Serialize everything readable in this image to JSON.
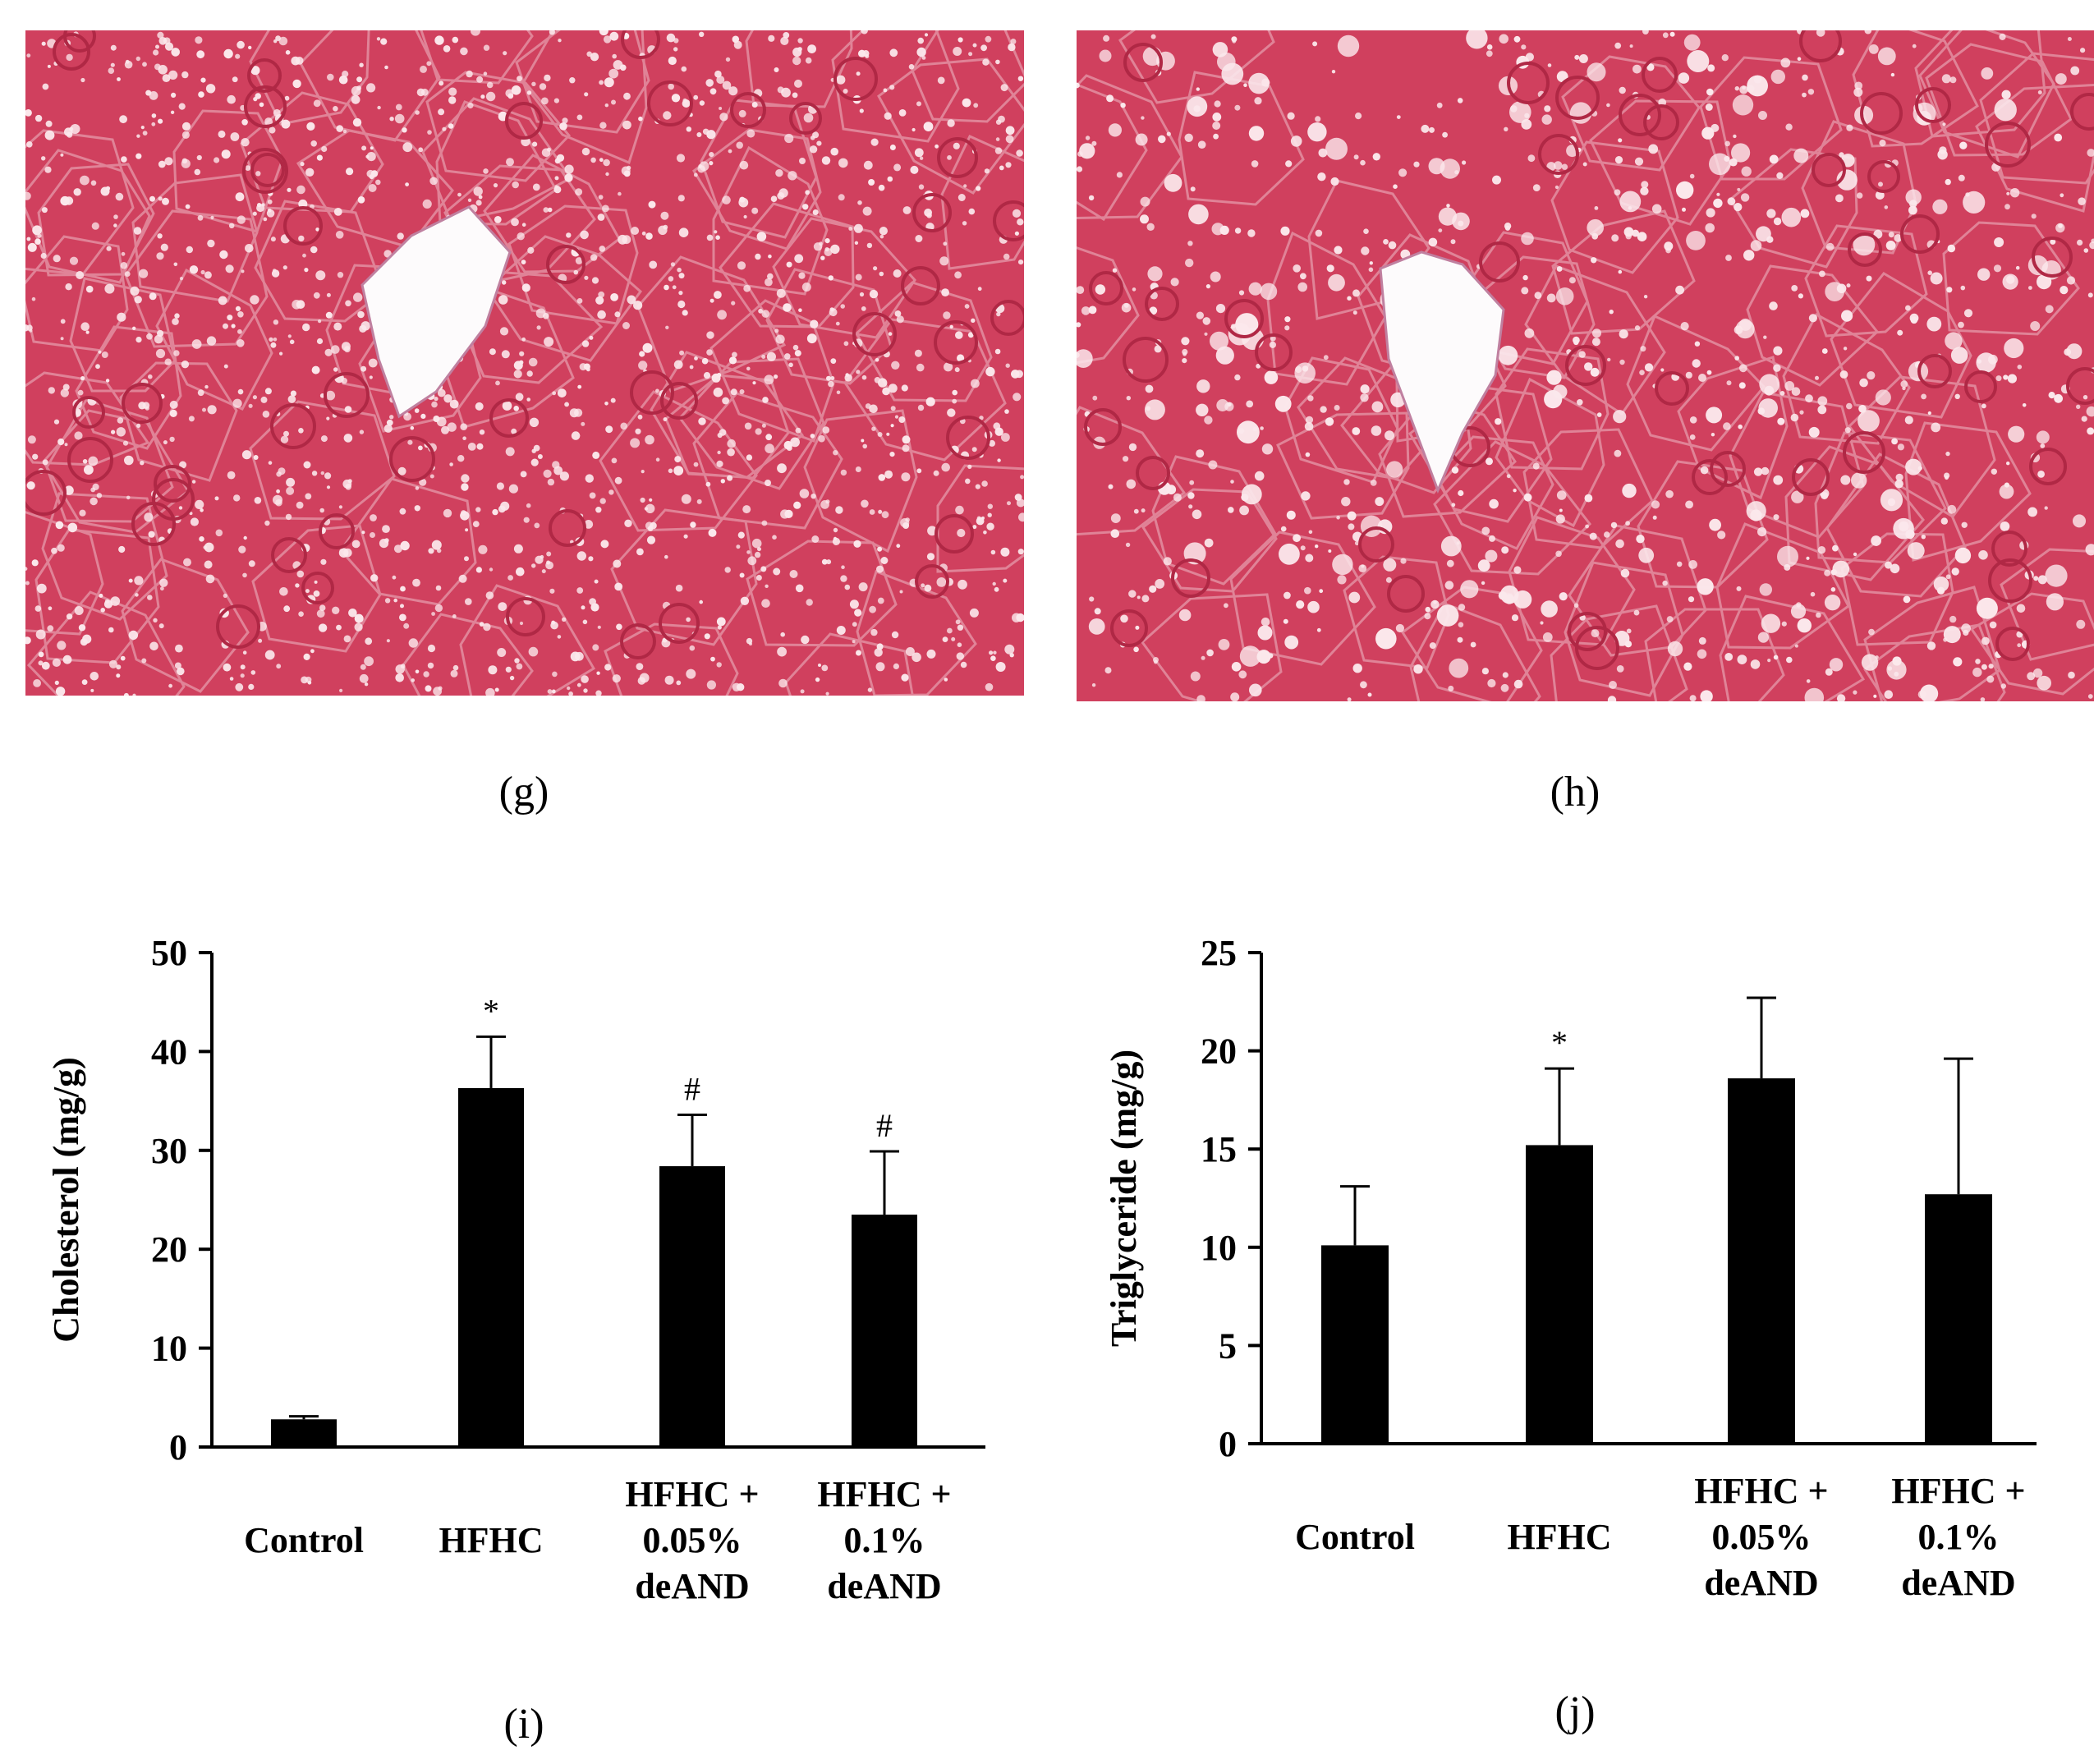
{
  "panels": {
    "g": {
      "label": "(g)"
    },
    "h": {
      "label": "(h)"
    },
    "i": {
      "label": "(i)"
    },
    "j": {
      "label": "(j)"
    }
  },
  "colors": {
    "tissue": "#d0405e",
    "tissue_dark": "#b02845",
    "vacuole": "#fbe8ec",
    "bar": "#000000"
  },
  "chart_data": [
    {
      "type": "bar",
      "id": "i",
      "categories": [
        [
          "Control"
        ],
        [
          "HFHC"
        ],
        [
          "HFHC +",
          "0.05%",
          "deAND"
        ],
        [
          "HFHC +",
          "0.1%",
          "deAND"
        ]
      ],
      "values": [
        2.8,
        36.3,
        28.4,
        23.5
      ],
      "errors": [
        0.3,
        5.2,
        5.2,
        6.4
      ],
      "significance": [
        "",
        "*",
        "#",
        "#"
      ],
      "ylabel": "Cholesterol (mg/g)",
      "ylim": [
        0,
        50
      ],
      "yticks": [
        0,
        10,
        20,
        30,
        40,
        50
      ],
      "legend": "none",
      "grid": false
    },
    {
      "type": "bar",
      "id": "j",
      "categories": [
        [
          "Control"
        ],
        [
          "HFHC"
        ],
        [
          "HFHC +",
          "0.05%",
          "deAND"
        ],
        [
          "HFHC +",
          "0.1%",
          "deAND"
        ]
      ],
      "values": [
        10.1,
        15.2,
        18.6,
        12.7
      ],
      "errors": [
        3.0,
        3.9,
        4.1,
        6.9
      ],
      "significance": [
        "",
        "*",
        "",
        ""
      ],
      "ylabel": "Triglyceride (mg/g)",
      "ylim": [
        0,
        25
      ],
      "yticks": [
        0,
        5,
        10,
        15,
        20,
        25
      ],
      "legend": "none",
      "grid": false
    }
  ]
}
